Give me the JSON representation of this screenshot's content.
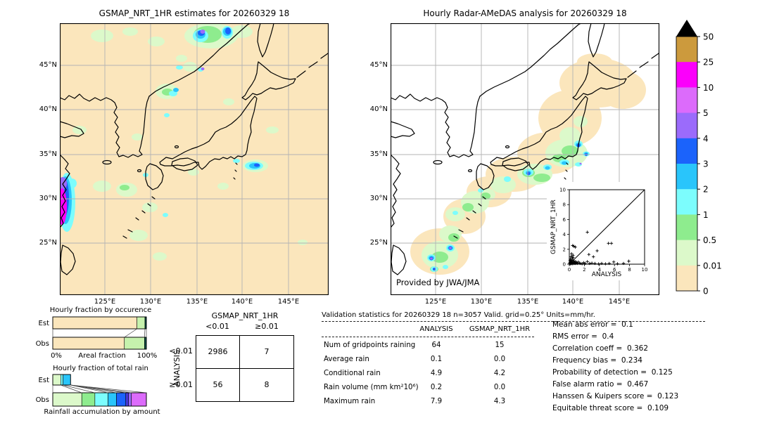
{
  "palette": {
    "no_rain": "#fbe6bc",
    "r0_01": "#dcf9ca",
    "r0_5": "#8eec8e",
    "r1": "#7cfdfd",
    "r2": "#29c5fb",
    "r3": "#1b63fb",
    "r4": "#9b6bfb",
    "r5": "#dc6bfb",
    "r10": "#fb00fb",
    "r25": "#cc9a3d",
    "overflow": "#000000",
    "gridline": "#b3b3b3",
    "coastline": "#000000"
  },
  "chart_data": [
    {
      "id": "left_map",
      "type": "map",
      "title": "GSMAP_NRT_1HR estimates for 20260329 18",
      "background": "#fbe6bc",
      "lon_ticks": [
        "125°E",
        "130°E",
        "135°E",
        "140°E",
        "145°E"
      ],
      "lat_ticks": [
        "45°N",
        "40°N",
        "35°N",
        "30°N",
        "25°N"
      ],
      "units": "mm/hr"
    },
    {
      "id": "right_map",
      "type": "map",
      "title": "Hourly Radar-AMeDAS analysis for 20260329 18",
      "background": "#ffffff",
      "credit": "Provided by JWA/JMA",
      "lon_ticks": [
        "125°E",
        "130°E",
        "135°E",
        "140°E",
        "145°E"
      ],
      "lat_ticks": [
        "45°N",
        "40°N",
        "35°N",
        "30°N",
        "25°N"
      ],
      "units": "mm/hr"
    },
    {
      "id": "colorbar",
      "type": "colorbar",
      "tick_labels": [
        "50",
        "25",
        "10",
        "5",
        "4",
        "3",
        "2",
        "1",
        "0.5",
        "0.01",
        "0"
      ],
      "colors_top_to_bottom": [
        "#cc9a3d",
        "#fb00fb",
        "#dc6bfb",
        "#9b6bfb",
        "#1b63fb",
        "#29c5fb",
        "#7cfdfd",
        "#8eec8e",
        "#dcf9ca",
        "#fbe6bc"
      ],
      "overflow_marker": "black-triangle"
    },
    {
      "id": "occurrence",
      "type": "stacked_bar",
      "title": "Hourly fraction by occurence",
      "rows": [
        "Est",
        "Obs"
      ],
      "xmin_label": "0%",
      "xlabel": "Areal fraction",
      "xmax_label": "100%",
      "series": {
        "Est": [
          {
            "color": "#fbe6bc",
            "frac": 0.9
          },
          {
            "color": "#c6f2ad",
            "frac": 0.085
          },
          {
            "color": "#0d4f45",
            "frac": 0.015
          }
        ],
        "Obs": [
          {
            "color": "#fbe6bc",
            "frac": 0.765
          },
          {
            "color": "#c6f2ad",
            "frac": 0.215
          },
          {
            "color": "#0d4f45",
            "frac": 0.02
          }
        ]
      }
    },
    {
      "id": "total_rain",
      "type": "stacked_bar",
      "title": "Hourly fraction of total rain",
      "rows": [
        "Est",
        "Obs"
      ],
      "xlabel": "Rainfall accumulation by amount",
      "series": {
        "Est": [
          {
            "color": "#dcf9ca",
            "frac": 0.085
          },
          {
            "color": "#7cfdfd",
            "frac": 0.025
          },
          {
            "color": "#29c5fb",
            "frac": 0.08
          }
        ],
        "Obs": [
          {
            "color": "#dcf9ca",
            "frac": 0.31
          },
          {
            "color": "#8eec8e",
            "frac": 0.14
          },
          {
            "color": "#7cfdfd",
            "frac": 0.14
          },
          {
            "color": "#29c5fb",
            "frac": 0.09
          },
          {
            "color": "#1b63fb",
            "frac": 0.1
          },
          {
            "color": "#4838d8",
            "frac": 0.03
          },
          {
            "color": "#9b6bfb",
            "frac": 0.03
          },
          {
            "color": "#dc6bfb",
            "frac": 0.16
          }
        ]
      }
    },
    {
      "id": "contingency",
      "type": "table",
      "col_group": "GSMAP_NRT_1HR",
      "row_group": "ANALYSIS",
      "col_labels": [
        "<0.01",
        "≥0.01"
      ],
      "row_labels": [
        "<0.01",
        "≥0.01"
      ],
      "values": [
        [
          "2986",
          "7"
        ],
        [
          "56",
          "8"
        ]
      ]
    },
    {
      "id": "validation",
      "type": "table",
      "title": "Validation statistics for 20260329 18  n=3057 Valid. grid=0.25° Units=mm/hr.",
      "columns": [
        "ANALYSIS",
        "GSMAP_NRT_1HR"
      ],
      "rows": [
        {
          "label": "Num of gridpoints raining",
          "values": [
            "64",
            "15"
          ]
        },
        {
          "label": "Average rain",
          "values": [
            "0.1",
            "0.0"
          ]
        },
        {
          "label": "Conditional rain",
          "values": [
            "4.9",
            "4.2"
          ]
        },
        {
          "label": "Rain volume (mm km²10⁶)",
          "values": [
            "0.2",
            "0.0"
          ]
        },
        {
          "label": "Maximum rain",
          "values": [
            "7.9",
            "4.3"
          ]
        }
      ]
    },
    {
      "id": "scores",
      "type": "list",
      "items": [
        {
          "label": "Mean abs error",
          "value": "0.1"
        },
        {
          "label": "RMS error",
          "value": "0.4"
        },
        {
          "label": "Correlation coeff",
          "value": "0.362"
        },
        {
          "label": "Frequency bias",
          "value": "0.234"
        },
        {
          "label": "Probability of detection",
          "value": "0.125"
        },
        {
          "label": "False alarm ratio",
          "value": "0.467"
        },
        {
          "label": "Hanssen & Kuipers score",
          "value": "0.123"
        },
        {
          "label": "Equitable threat score",
          "value": "0.109"
        }
      ]
    },
    {
      "id": "scatter",
      "type": "scatter",
      "xlabel": "ANALYSIS",
      "ylabel": "GSMAP_NRT_1HR",
      "xlim": [
        0,
        10
      ],
      "ylim": [
        0,
        10
      ],
      "xticks": [
        0,
        2,
        4,
        6,
        8,
        10
      ],
      "yticks": [
        0,
        2,
        4,
        6,
        8,
        10
      ],
      "identity_line": true,
      "points": [
        [
          0.05,
          0.1
        ],
        [
          0.1,
          0.05
        ],
        [
          0.1,
          0.25
        ],
        [
          0.1,
          0.5
        ],
        [
          0.15,
          0.15
        ],
        [
          0.15,
          0.7
        ],
        [
          0.2,
          0.4
        ],
        [
          0.2,
          0.05
        ],
        [
          0.25,
          0.2
        ],
        [
          0.3,
          0.1
        ],
        [
          0.3,
          0.55
        ],
        [
          0.35,
          0.3
        ],
        [
          0.4,
          0.15
        ],
        [
          0.4,
          0.7
        ],
        [
          0.45,
          0.05
        ],
        [
          0.5,
          0.3
        ],
        [
          0.5,
          0.9
        ],
        [
          0.55,
          0.15
        ],
        [
          0.6,
          0.45
        ],
        [
          0.65,
          0.1
        ],
        [
          0.7,
          0.25
        ],
        [
          0.8,
          0.1
        ],
        [
          0.85,
          0.35
        ],
        [
          0.95,
          0.2
        ],
        [
          1.05,
          0.1
        ],
        [
          1.2,
          0.3
        ],
        [
          1.35,
          0.15
        ],
        [
          1.5,
          0.1
        ],
        [
          1.7,
          0.05
        ],
        [
          1.9,
          0.2
        ],
        [
          2.1,
          0.1
        ],
        [
          2.4,
          0.35
        ],
        [
          2.7,
          0.1
        ],
        [
          3.0,
          0.15
        ],
        [
          3.4,
          0.1
        ],
        [
          3.9,
          0.05
        ],
        [
          4.3,
          0.1
        ],
        [
          4.8,
          0.05
        ],
        [
          5.3,
          0.1
        ],
        [
          5.9,
          0.3
        ],
        [
          6.4,
          0.05
        ],
        [
          7.2,
          0.1
        ],
        [
          7.9,
          0.4
        ],
        [
          0.2,
          1.0
        ],
        [
          0.3,
          1.4
        ],
        [
          0.35,
          1.0
        ],
        [
          0.5,
          1.2
        ],
        [
          0.45,
          2.5
        ],
        [
          0.6,
          2.4
        ],
        [
          0.8,
          2.3
        ],
        [
          2.4,
          4.3
        ],
        [
          2.6,
          1.3
        ],
        [
          3.2,
          1.0
        ],
        [
          3.7,
          1.8
        ],
        [
          5.2,
          2.8
        ],
        [
          5.6,
          2.8
        ]
      ]
    }
  ]
}
